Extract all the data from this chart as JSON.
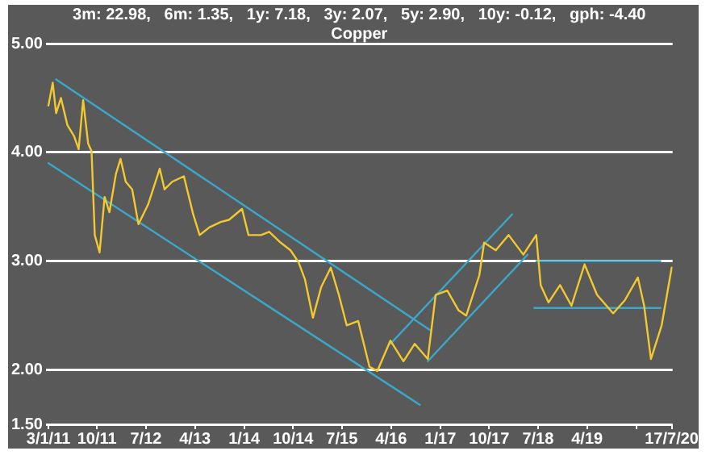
{
  "chart_data": {
    "type": "line",
    "title": "Copper",
    "subtitle": "3m: 22.98,   6m: 1.35,   1y: 7.18,   3y: 2.07,   5y: 2.90,   10y: -0.12,   gph: -4.40",
    "xlim": [
      "2010-12-20",
      "2020-07-22"
    ],
    "xticks": [
      {
        "value": "2011-01-03",
        "label": "3/1/11"
      },
      {
        "value": "2011-10-01",
        "label": "10/11"
      },
      {
        "value": "2012-07-01",
        "label": "7/12"
      },
      {
        "value": "2013-04-01",
        "label": "4/13"
      },
      {
        "value": "2014-01-01",
        "label": "1/14"
      },
      {
        "value": "2014-10-01",
        "label": "10/14"
      },
      {
        "value": "2015-07-01",
        "label": "7/15"
      },
      {
        "value": "2016-04-01",
        "label": "4/16"
      },
      {
        "value": "2017-01-01",
        "label": "1/17"
      },
      {
        "value": "2017-10-01",
        "label": "10/17"
      },
      {
        "value": "2018-07-01",
        "label": "7/18"
      },
      {
        "value": "2019-04-01",
        "label": "4/19"
      },
      {
        "value": "2020-01-01",
        "label": null
      },
      {
        "value": "2020-07-17",
        "label": "17/7/20"
      }
    ],
    "ylim": [
      1.5,
      5
    ],
    "yticks": [
      {
        "value": 1.5,
        "label": "1.50"
      },
      {
        "value": 2,
        "label": "2.00"
      },
      {
        "value": 3,
        "label": "3.00"
      },
      {
        "value": 4,
        "label": "4.00"
      },
      {
        "value": 5,
        "label": "5.00"
      }
    ],
    "grid": "y",
    "legend": false,
    "marker": "none",
    "line_style": "solid",
    "series": [
      {
        "color": "#f2c92e",
        "x": [
          "2011-01-03",
          "2011-01-27",
          "2011-02-15",
          "2011-03-14",
          "2011-04-19",
          "2011-05-26",
          "2011-06-21",
          "2011-07-16",
          "2011-08-13",
          "2011-09-01",
          "2011-09-19",
          "2011-10-16",
          "2011-11-13",
          "2011-12-10",
          "2012-01-15",
          "2012-02-10",
          "2012-03-10",
          "2012-04-15",
          "2012-05-20",
          "2012-07-13",
          "2012-09-16",
          "2012-10-13",
          "2012-11-25",
          "2013-01-29",
          "2013-03-22",
          "2013-04-27",
          "2013-06-20",
          "2013-08-23",
          "2013-10-08",
          "2013-12-20",
          "2014-01-25",
          "2014-04-05",
          "2014-05-21",
          "2014-07-24",
          "2014-09-17",
          "2014-11-01",
          "2014-12-07",
          "2015-01-20",
          "2015-03-07",
          "2015-04-30",
          "2015-06-14",
          "2015-07-28",
          "2015-09-30",
          "2015-12-02",
          "2016-01-15",
          "2016-03-28",
          "2016-06-09",
          "2016-08-11",
          "2016-10-23",
          "2016-12-06",
          "2017-02-09",
          "2017-04-12",
          "2017-05-26",
          "2017-08-07",
          "2017-09-03",
          "2017-11-07",
          "2018-01-18",
          "2018-04-10",
          "2018-06-21",
          "2018-07-16",
          "2018-08-29",
          "2018-11-01",
          "2019-01-04",
          "2019-03-18",
          "2019-05-27",
          "2019-08-25",
          "2019-10-29",
          "2020-01-10",
          "2020-02-14",
          "2020-03-23",
          "2020-05-22",
          "2020-07-17"
        ],
        "values": [
          4.43,
          4.64,
          4.36,
          4.5,
          4.25,
          4.15,
          4.03,
          4.48,
          4.08,
          4.01,
          3.24,
          3.08,
          3.59,
          3.45,
          3.8,
          3.94,
          3.73,
          3.66,
          3.34,
          3.52,
          3.85,
          3.66,
          3.73,
          3.78,
          3.43,
          3.24,
          3.31,
          3.36,
          3.38,
          3.48,
          3.24,
          3.24,
          3.27,
          3.17,
          3.1,
          2.99,
          2.83,
          2.48,
          2.76,
          2.94,
          2.69,
          2.41,
          2.45,
          2.03,
          1.99,
          2.27,
          2.08,
          2.24,
          2.1,
          2.69,
          2.73,
          2.55,
          2.5,
          2.87,
          3.17,
          3.1,
          3.24,
          3.06,
          3.24,
          2.78,
          2.62,
          2.78,
          2.59,
          2.97,
          2.69,
          2.52,
          2.64,
          2.85,
          2.59,
          2.1,
          2.41,
          2.94
        ]
      },
      {
        "color": "#3aa8c8",
        "x": [
          "2011-02-15",
          "2016-11-10"
        ],
        "values": [
          4.67,
          2.36
        ]
      },
      {
        "color": "#3aa8c8",
        "x": [
          "2011-01-03",
          "2016-09-08"
        ],
        "values": [
          3.9,
          1.68
        ]
      },
      {
        "color": "#3aa8c8",
        "x": [
          "2016-03-28",
          "2018-02-06"
        ],
        "values": [
          2.24,
          3.43
        ]
      },
      {
        "color": "#3aa8c8",
        "x": [
          "2016-10-23",
          "2018-05-04"
        ],
        "values": [
          2.08,
          3.06
        ]
      },
      {
        "color": "#3aa8c8",
        "x": [
          "2018-06-21",
          "2020-05-15"
        ],
        "values": [
          3.0,
          3.0
        ]
      },
      {
        "color": "#3aa8c8",
        "x": [
          "2018-06-10",
          "2020-05-15"
        ],
        "values": [
          2.57,
          2.57
        ]
      }
    ]
  }
}
